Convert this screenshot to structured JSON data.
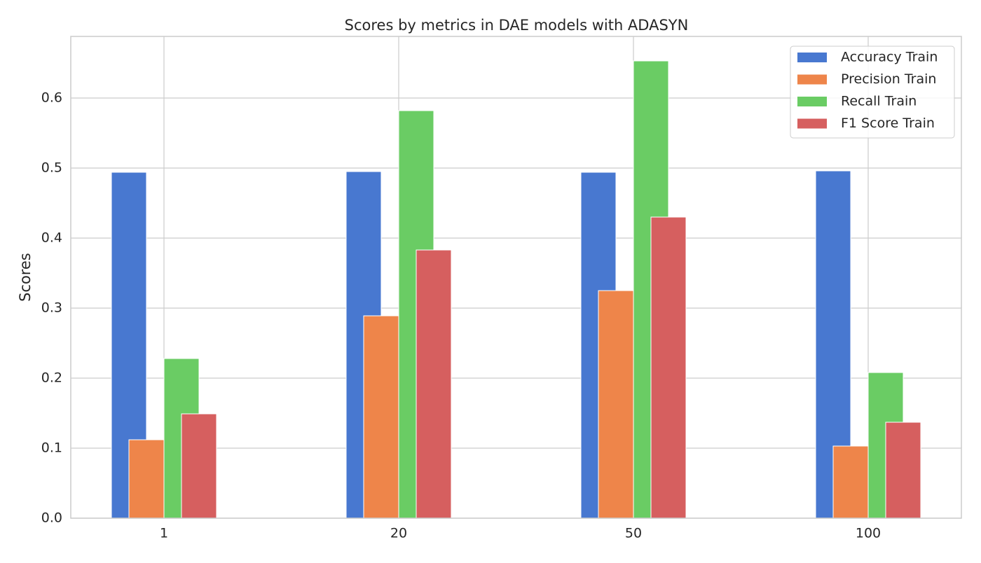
{
  "chart_data": {
    "type": "bar",
    "title": "Scores by metrics in DAE models with ADASYN",
    "ylabel": "Scores",
    "categories": [
      "1",
      "20",
      "50",
      "100"
    ],
    "series": [
      {
        "name": "Accuracy Train",
        "color": "#4878d0",
        "values": [
          0.494,
          0.495,
          0.494,
          0.496
        ]
      },
      {
        "name": "Precision Train",
        "color": "#ee854a",
        "values": [
          0.112,
          0.289,
          0.325,
          0.103
        ]
      },
      {
        "name": "Recall Train",
        "color": "#6acc64",
        "values": [
          0.228,
          0.582,
          0.653,
          0.208
        ]
      },
      {
        "name": "F1 Score Train",
        "color": "#d65f5f",
        "values": [
          0.149,
          0.383,
          0.43,
          0.137
        ]
      }
    ],
    "ylim": [
      0,
      0.688
    ],
    "yticks": [
      {
        "value": 0,
        "label": "0.0"
      },
      0.1,
      0.2,
      0.3,
      0.4,
      0.5,
      0.6
    ],
    "grid": true,
    "legend": "upper right"
  }
}
